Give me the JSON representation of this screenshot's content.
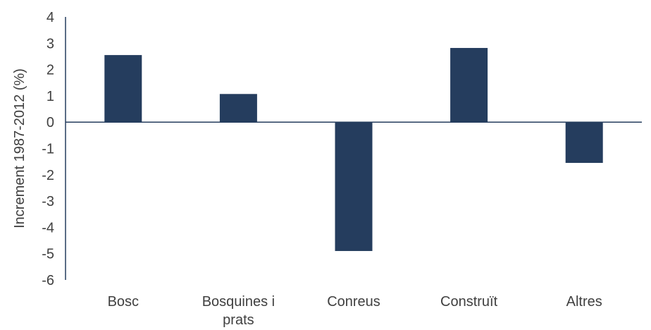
{
  "chart_data": {
    "type": "bar",
    "title": "",
    "xlabel": "",
    "ylabel": "Increment 1987-2012 (%)",
    "categories": [
      [
        "Bosc"
      ],
      [
        "Bosquines i",
        "prats"
      ],
      [
        "Conreus"
      ],
      [
        "Construït"
      ],
      [
        "Altres"
      ]
    ],
    "values": [
      2.55,
      1.07,
      -4.9,
      2.82,
      -1.55
    ],
    "ylim": [
      -6,
      4
    ],
    "yticks": [
      4,
      3,
      2,
      1,
      0,
      -1,
      -2,
      -3,
      -4,
      -5,
      -6
    ],
    "grid": false,
    "legend": "none",
    "colors": {
      "bar": "#253d5e",
      "axis": "#253d5e",
      "text": "#404040"
    }
  }
}
